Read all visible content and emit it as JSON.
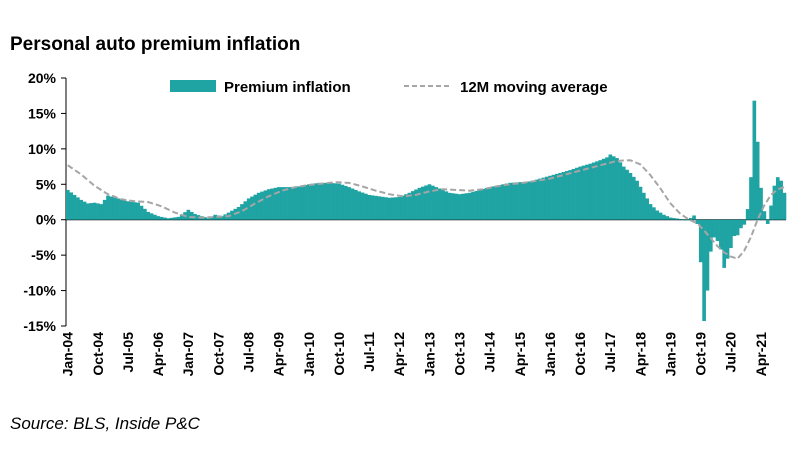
{
  "chart_data": {
    "type": "bar",
    "title": "Personal auto premium inflation",
    "source": "Source: BLS, Inside P&C",
    "ylim": [
      -15,
      20
    ],
    "y_ticks": [
      20,
      15,
      10,
      5,
      0,
      -5,
      -10,
      -15
    ],
    "y_tick_labels": [
      "20%",
      "15%",
      "10%",
      "5%",
      "0%",
      "-5%",
      "-10%",
      "-15%"
    ],
    "x_tick_labels": [
      "Jan-04",
      "Oct-04",
      "Jul-05",
      "Apr-06",
      "Jan-07",
      "Oct-07",
      "Jul-08",
      "Apr-09",
      "Jan-10",
      "Oct-10",
      "Jul-11",
      "Apr-12",
      "Jan-13",
      "Oct-13",
      "Jul-14",
      "Apr-15",
      "Jan-16",
      "Oct-16",
      "Jul-17",
      "Apr-18",
      "Jan-19",
      "Oct-19",
      "Jul-20",
      "Apr-21"
    ],
    "start_month": "Jan-04",
    "bar_color": "#1fa3a3",
    "line_color": "#a6a6a6",
    "series": [
      {
        "name": "Premium inflation",
        "kind": "bar",
        "anchors": [
          [
            0,
            4.2
          ],
          [
            2,
            3.5
          ],
          [
            4,
            2.8
          ],
          [
            6,
            2.3
          ],
          [
            8,
            2.4
          ],
          [
            10,
            2.2
          ],
          [
            12,
            3.4
          ],
          [
            15,
            3.0
          ],
          [
            18,
            2.6
          ],
          [
            21,
            2.4
          ],
          [
            24,
            1.1
          ],
          [
            27,
            0.5
          ],
          [
            30,
            0.2
          ],
          [
            33,
            0.4
          ],
          [
            36,
            1.4
          ],
          [
            38,
            0.8
          ],
          [
            40,
            0.5
          ],
          [
            42,
            0.2
          ],
          [
            44,
            0.7
          ],
          [
            46,
            0.5
          ],
          [
            48,
            1.0
          ],
          [
            51,
            1.8
          ],
          [
            54,
            3.0
          ],
          [
            57,
            3.8
          ],
          [
            60,
            4.3
          ],
          [
            63,
            4.6
          ],
          [
            66,
            4.6
          ],
          [
            69,
            4.7
          ],
          [
            72,
            5.0
          ],
          [
            75,
            5.2
          ],
          [
            78,
            5.2
          ],
          [
            81,
            5.1
          ],
          [
            84,
            4.6
          ],
          [
            87,
            4.0
          ],
          [
            90,
            3.5
          ],
          [
            93,
            3.3
          ],
          [
            96,
            3.1
          ],
          [
            99,
            3.2
          ],
          [
            102,
            3.8
          ],
          [
            105,
            4.5
          ],
          [
            108,
            5.0
          ],
          [
            110,
            4.6
          ],
          [
            112,
            4.2
          ],
          [
            114,
            3.8
          ],
          [
            117,
            3.6
          ],
          [
            120,
            3.8
          ],
          [
            123,
            4.2
          ],
          [
            126,
            4.6
          ],
          [
            129,
            4.9
          ],
          [
            132,
            5.2
          ],
          [
            135,
            5.3
          ],
          [
            138,
            5.4
          ],
          [
            141,
            5.8
          ],
          [
            144,
            6.2
          ],
          [
            147,
            6.6
          ],
          [
            150,
            7.0
          ],
          [
            153,
            7.5
          ],
          [
            156,
            7.9
          ],
          [
            159,
            8.4
          ],
          [
            161,
            8.8
          ],
          [
            162,
            9.2
          ],
          [
            164,
            8.7
          ],
          [
            166,
            7.5
          ],
          [
            168,
            6.6
          ],
          [
            170,
            5.5
          ],
          [
            172,
            3.8
          ],
          [
            174,
            2.2
          ],
          [
            176,
            1.3
          ],
          [
            178,
            0.7
          ],
          [
            180,
            0.3
          ],
          [
            183,
            0.1
          ],
          [
            185,
            -0.1
          ],
          [
            187,
            0.6
          ],
          [
            188,
            -0.6
          ],
          [
            189,
            -6.0
          ],
          [
            190,
            -14.3
          ],
          [
            191,
            -10.0
          ],
          [
            192,
            -4.5
          ],
          [
            193,
            -2.5
          ],
          [
            194,
            -3.0
          ],
          [
            195,
            -4.2
          ],
          [
            196,
            -6.8
          ],
          [
            197,
            -5.5
          ],
          [
            198,
            -4.0
          ],
          [
            199,
            -2.3
          ],
          [
            200,
            -2.2
          ],
          [
            201,
            -1.2
          ],
          [
            202,
            -0.7
          ],
          [
            203,
            1.5
          ],
          [
            204,
            6.0
          ],
          [
            205,
            16.8
          ],
          [
            206,
            11.0
          ],
          [
            207,
            4.5
          ],
          [
            208,
            1.2
          ],
          [
            209,
            -0.6
          ],
          [
            210,
            2.0
          ],
          [
            211,
            4.8
          ],
          [
            212,
            6.0
          ],
          [
            213,
            5.5
          ],
          [
            214,
            3.8
          ]
        ]
      },
      {
        "name": "12M moving average",
        "kind": "line",
        "anchors": [
          [
            0,
            7.7
          ],
          [
            4,
            6.4
          ],
          [
            8,
            4.8
          ],
          [
            12,
            3.6
          ],
          [
            16,
            2.9
          ],
          [
            20,
            2.6
          ],
          [
            24,
            2.5
          ],
          [
            28,
            1.9
          ],
          [
            32,
            1.0
          ],
          [
            36,
            0.4
          ],
          [
            40,
            0.3
          ],
          [
            44,
            0.4
          ],
          [
            48,
            0.5
          ],
          [
            52,
            1.2
          ],
          [
            56,
            2.3
          ],
          [
            60,
            3.3
          ],
          [
            64,
            4.1
          ],
          [
            68,
            4.6
          ],
          [
            72,
            4.9
          ],
          [
            76,
            5.1
          ],
          [
            80,
            5.3
          ],
          [
            84,
            5.2
          ],
          [
            88,
            4.7
          ],
          [
            92,
            4.1
          ],
          [
            96,
            3.6
          ],
          [
            100,
            3.3
          ],
          [
            104,
            3.5
          ],
          [
            108,
            4.0
          ],
          [
            112,
            4.3
          ],
          [
            116,
            4.2
          ],
          [
            120,
            4.1
          ],
          [
            124,
            4.3
          ],
          [
            128,
            4.7
          ],
          [
            132,
            5.0
          ],
          [
            136,
            5.2
          ],
          [
            140,
            5.5
          ],
          [
            144,
            5.8
          ],
          [
            148,
            6.3
          ],
          [
            152,
            6.8
          ],
          [
            156,
            7.3
          ],
          [
            160,
            7.8
          ],
          [
            164,
            8.3
          ],
          [
            168,
            8.4
          ],
          [
            171,
            7.8
          ],
          [
            174,
            6.3
          ],
          [
            177,
            4.4
          ],
          [
            180,
            2.3
          ],
          [
            183,
            0.8
          ],
          [
            186,
            -0.1
          ],
          [
            188,
            -0.5
          ],
          [
            190,
            -1.5
          ],
          [
            192,
            -2.6
          ],
          [
            194,
            -3.7
          ],
          [
            196,
            -4.6
          ],
          [
            198,
            -5.2
          ],
          [
            200,
            -5.5
          ],
          [
            202,
            -4.4
          ],
          [
            204,
            -2.5
          ],
          [
            206,
            0.0
          ],
          [
            208,
            2.0
          ],
          [
            210,
            3.5
          ],
          [
            212,
            4.3
          ],
          [
            214,
            4.6
          ]
        ]
      }
    ],
    "legend": [
      "Premium inflation",
      "12M moving average"
    ],
    "legend_position": "top"
  }
}
